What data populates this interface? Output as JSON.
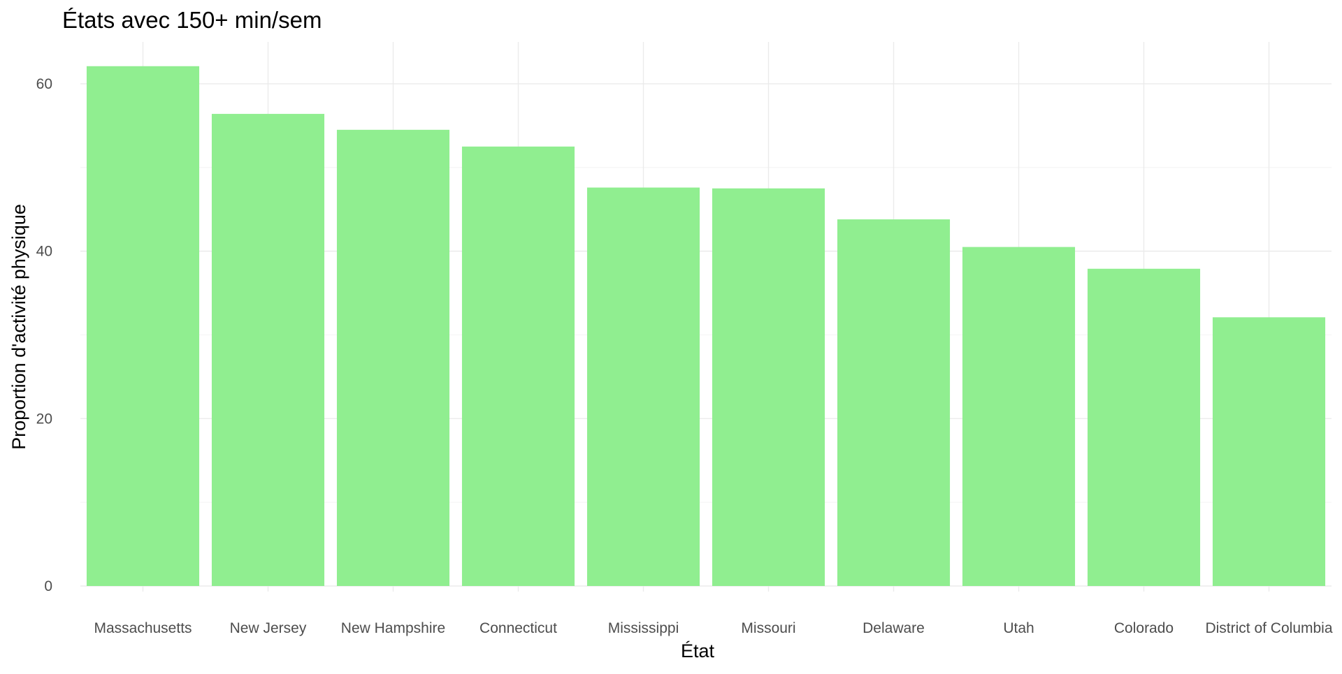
{
  "chart_data": {
    "type": "bar",
    "title": "États avec 150+ min/sem",
    "xlabel": "État",
    "ylabel": "Proportion d'activité physique",
    "categories": [
      "Massachusetts",
      "New Jersey",
      "New Hampshire",
      "Connecticut",
      "Mississippi",
      "Missouri",
      "Delaware",
      "Utah",
      "Colorado",
      "District of Columbia"
    ],
    "values": [
      62.1,
      56.4,
      54.5,
      52.5,
      47.6,
      47.5,
      43.8,
      40.5,
      37.9,
      32.1
    ],
    "ylim": [
      0,
      65
    ],
    "yticks": [
      0,
      20,
      40,
      60
    ],
    "bar_color": "#90ee90",
    "grid": true,
    "legend": "none"
  }
}
